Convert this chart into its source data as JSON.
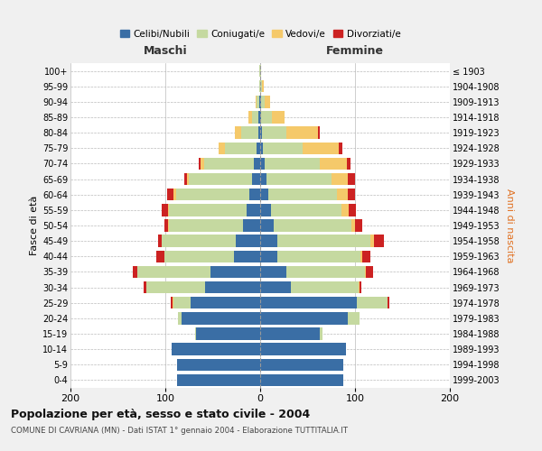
{
  "age_groups": [
    "0-4",
    "5-9",
    "10-14",
    "15-19",
    "20-24",
    "25-29",
    "30-34",
    "35-39",
    "40-44",
    "45-49",
    "50-54",
    "55-59",
    "60-64",
    "65-69",
    "70-74",
    "75-79",
    "80-84",
    "85-89",
    "90-94",
    "95-99",
    "100+"
  ],
  "birth_years": [
    "1999-2003",
    "1994-1998",
    "1989-1993",
    "1984-1988",
    "1979-1983",
    "1974-1978",
    "1969-1973",
    "1964-1968",
    "1959-1963",
    "1954-1958",
    "1949-1953",
    "1944-1948",
    "1939-1943",
    "1934-1938",
    "1929-1933",
    "1924-1928",
    "1919-1923",
    "1914-1918",
    "1909-1913",
    "1904-1908",
    "≤ 1903"
  ],
  "maschi": {
    "celibi": [
      88,
      88,
      93,
      68,
      83,
      73,
      58,
      52,
      28,
      26,
      18,
      14,
      11,
      9,
      7,
      4,
      2,
      2,
      1,
      0,
      0
    ],
    "coniugati": [
      0,
      0,
      0,
      1,
      4,
      18,
      62,
      78,
      73,
      78,
      78,
      82,
      78,
      66,
      52,
      33,
      18,
      7,
      3,
      1,
      1
    ],
    "vedovi": [
      0,
      0,
      0,
      0,
      0,
      1,
      0,
      0,
      0,
      0,
      1,
      1,
      2,
      2,
      4,
      7,
      7,
      3,
      1,
      0,
      0
    ],
    "divorziati": [
      0,
      0,
      0,
      0,
      0,
      2,
      3,
      4,
      9,
      4,
      4,
      7,
      7,
      3,
      2,
      0,
      0,
      0,
      0,
      0,
      0
    ]
  },
  "femmine": {
    "nubili": [
      88,
      88,
      90,
      63,
      92,
      102,
      32,
      28,
      18,
      18,
      14,
      11,
      9,
      7,
      5,
      3,
      2,
      1,
      1,
      0,
      0
    ],
    "coniugate": [
      0,
      0,
      0,
      3,
      13,
      32,
      72,
      82,
      88,
      98,
      82,
      75,
      72,
      68,
      58,
      42,
      26,
      11,
      4,
      2,
      1
    ],
    "vedove": [
      0,
      0,
      0,
      0,
      0,
      0,
      1,
      1,
      2,
      4,
      4,
      7,
      11,
      17,
      28,
      38,
      33,
      14,
      5,
      2,
      0
    ],
    "divorziate": [
      0,
      0,
      0,
      0,
      0,
      2,
      2,
      8,
      8,
      10,
      8,
      8,
      8,
      8,
      4,
      4,
      2,
      0,
      0,
      0,
      0
    ]
  },
  "colors": {
    "celibi_nubili": "#3a6ea5",
    "coniugati": "#c5d9a0",
    "vedovi": "#f5c96a",
    "divorziati": "#cc2222"
  },
  "xlim": 200,
  "title": "Popolazione per età, sesso e stato civile - 2004",
  "subtitle": "COMUNE DI CAVRIANA (MN) - Dati ISTAT 1° gennaio 2004 - Elaborazione TUTTITALIA.IT",
  "ylabel_left": "Fasce di età",
  "ylabel_right": "Anni di nascita",
  "xlabel_left": "Maschi",
  "xlabel_right": "Femmine",
  "legend_labels": [
    "Celibi/Nubili",
    "Coniugati/e",
    "Vedovi/e",
    "Divorziati/e"
  ],
  "bg_color": "#f0f0f0",
  "plot_bg_color": "#ffffff"
}
